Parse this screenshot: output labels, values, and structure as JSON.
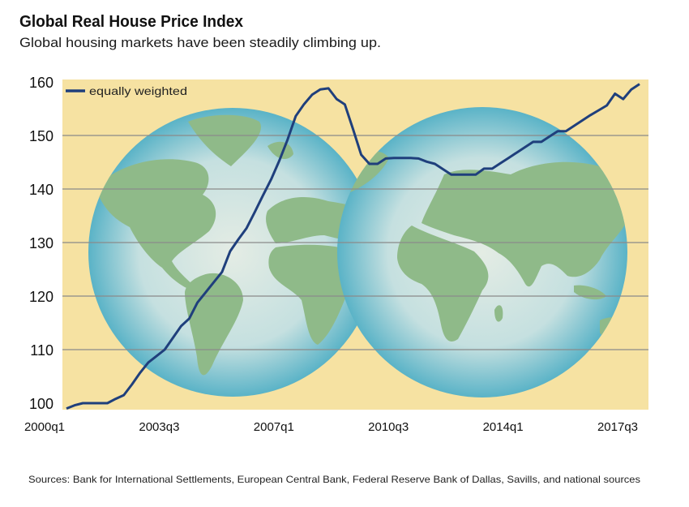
{
  "title": "Global Real House Price Index",
  "subtitle": "Global housing markets have been steadily climbing up.",
  "source": "Sources: Bank for International Settlements, European Central Bank, Federal Reserve Bank of Dallas, Savills, and national sources",
  "colors": {
    "background": "#f6e2a2",
    "line": "#1f3f7c",
    "land": "#8fba89",
    "ocean_edge": "#5fb6c9",
    "ocean_center": "#e3ebe3",
    "grid": "#8a8a8a"
  },
  "chart_data": {
    "type": "line",
    "title": "Global Real House Price Index",
    "xlabel": "",
    "ylabel": "",
    "ylim": [
      98.8,
      160.5
    ],
    "yticks": [
      100,
      110,
      120,
      130,
      140,
      150,
      160
    ],
    "xticks": [
      {
        "label": "2000q1",
        "q": 0
      },
      {
        "label": "2003q3",
        "q": 14
      },
      {
        "label": "2007q1",
        "q": 28
      },
      {
        "label": "2010q3",
        "q": 42
      },
      {
        "label": "2014q1",
        "q": 56
      },
      {
        "label": "2017q3",
        "q": 70
      }
    ],
    "grid": true,
    "legend": {
      "position": "top-left",
      "entries": [
        "equally weighted"
      ]
    },
    "series": [
      {
        "name": "equally weighted",
        "start": "2000q1",
        "values": [
          99.0,
          99.6,
          100,
          100,
          100,
          100,
          100.8,
          101.5,
          103.5,
          105.7,
          107.6,
          108.8,
          110,
          112.2,
          114.4,
          115.8,
          118.8,
          120.7,
          122.6,
          124.5,
          128.4,
          130.6,
          132.7,
          135.7,
          138.8,
          141.8,
          145.3,
          149.2,
          153.6,
          155.8,
          157.6,
          158.6,
          158.8,
          156.8,
          155.8,
          151.2,
          146.4,
          144.7,
          144.7,
          145.7,
          145.8,
          145.8,
          145.8,
          145.7,
          145.1,
          144.7,
          143.7,
          142.7,
          142.7,
          142.7,
          142.7,
          143.8,
          143.8,
          144.8,
          145.8,
          146.8,
          147.8,
          148.8,
          148.8,
          149.8,
          150.8,
          150.8,
          151.8,
          152.8,
          153.8,
          154.7,
          155.6,
          157.8,
          156.8,
          158.6,
          159.6
        ]
      }
    ]
  }
}
